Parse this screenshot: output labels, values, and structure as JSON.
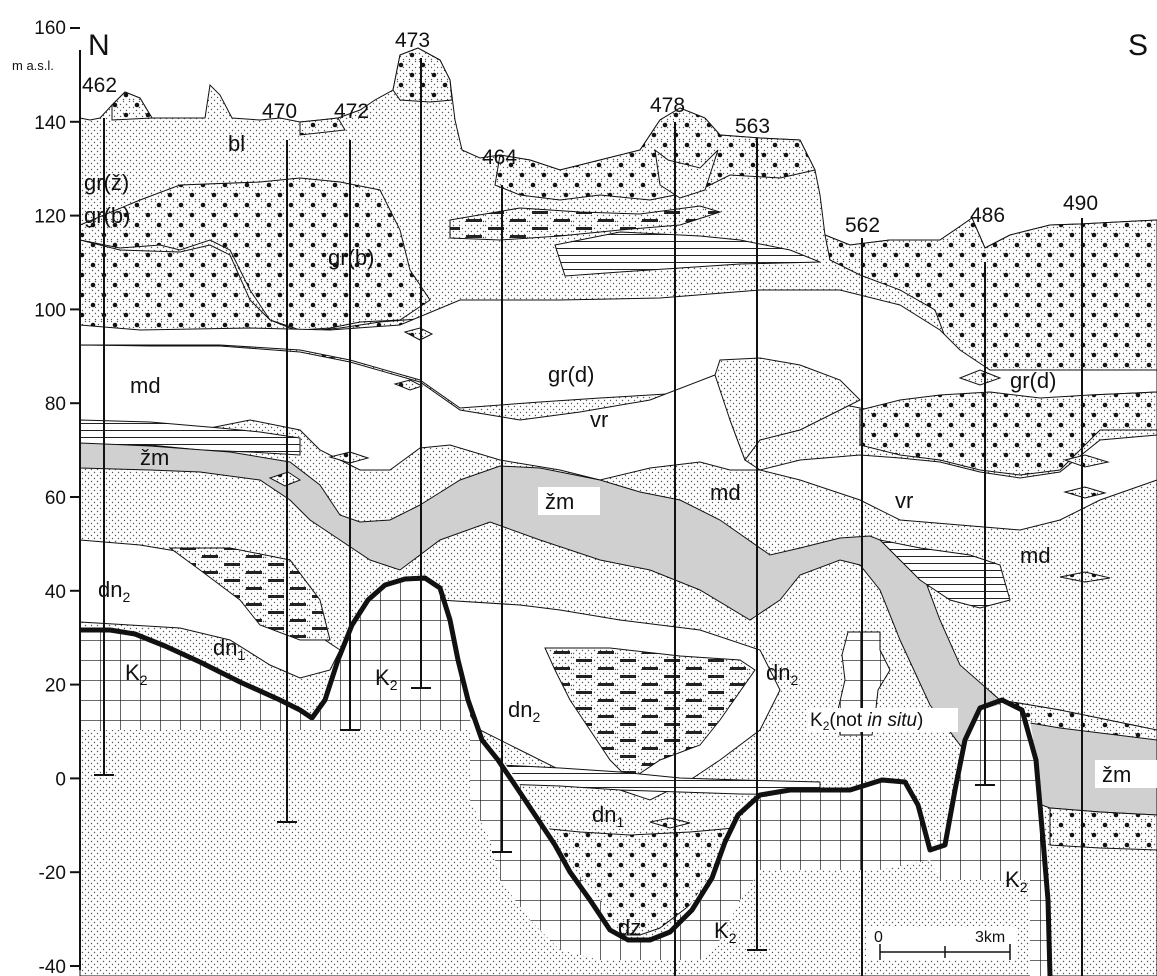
{
  "y_axis": {
    "top_label": "160",
    "unit": "m a.s.l.",
    "ticks": [
      "160",
      "140",
      "120",
      "100",
      "80",
      "60",
      "40",
      "20",
      "0",
      "-20",
      "-40"
    ]
  },
  "directions": {
    "north": "N",
    "south": "S"
  },
  "wells": [
    "462",
    "470",
    "472",
    "473",
    "464",
    "478",
    "563",
    "562",
    "486",
    "490"
  ],
  "units": {
    "bl": "bl",
    "gr_z": "gr(ž)",
    "gr_b_left": "gr(b)",
    "gr_b_center": "gr(b)",
    "md_upper": "md",
    "gr_d_center": "gr(d)",
    "vr_center": "vr",
    "zm_left": "žm",
    "zm_center": "žm",
    "md_mid": "md",
    "vr_right": "vr",
    "gr_d_right": "gr(d)",
    "md_right": "md",
    "zm_right": "žm",
    "dz": "dz"
  },
  "subscript_units": {
    "dn2_left": {
      "base": "dn",
      "sub": "2"
    },
    "dn1_left": {
      "base": "dn",
      "sub": "1"
    },
    "k2_left": {
      "base": "K",
      "sub": "2"
    },
    "k2_center": {
      "base": "K",
      "sub": "2"
    },
    "dn2_center": {
      "base": "dn",
      "sub": "2"
    },
    "dn2_mid": {
      "base": "dn",
      "sub": "2"
    },
    "dn1_center": {
      "base": "dn",
      "sub": "1"
    },
    "k2_bottom": {
      "base": "K",
      "sub": "2"
    },
    "k2_right": {
      "base": "K",
      "sub": "2"
    }
  },
  "not_in_situ": {
    "base": "K",
    "sub": "2",
    "open": "(not ",
    "italic": "in situ",
    "close": ")"
  },
  "scale_bar": {
    "start": "0",
    "end": "3km"
  }
}
